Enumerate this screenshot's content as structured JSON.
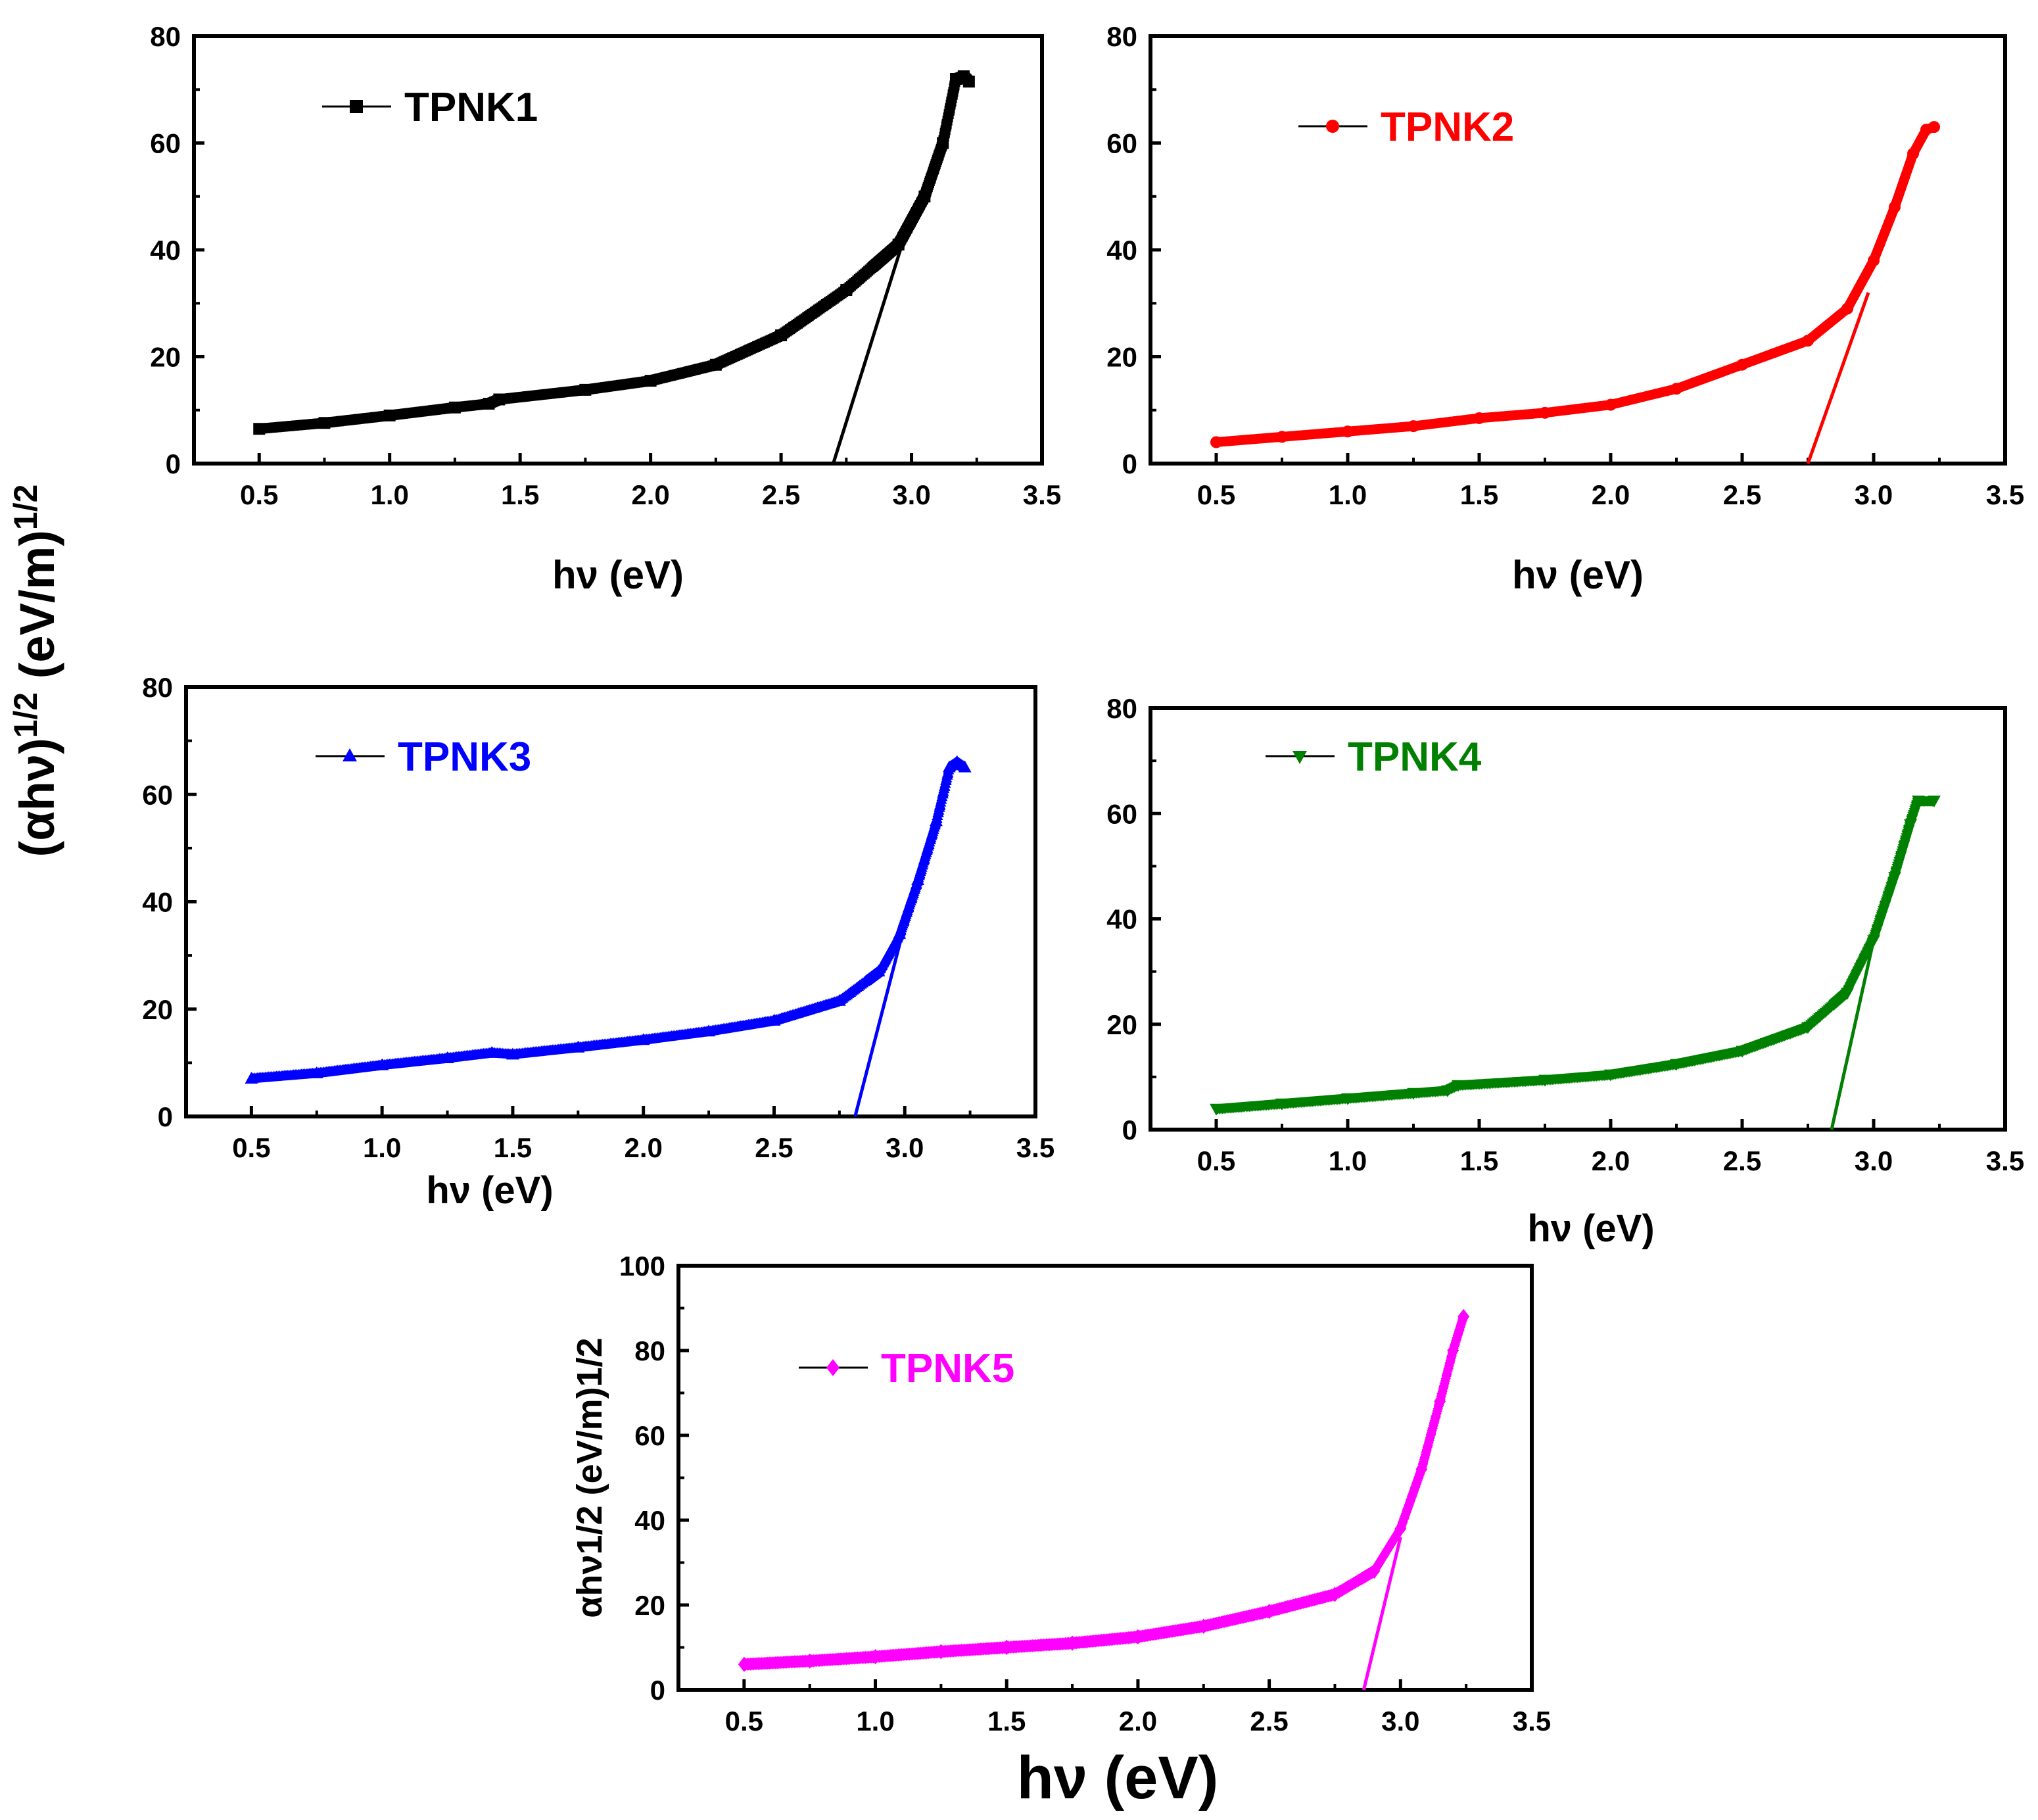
{
  "figure": {
    "shared_ylabel": "(αhν)1/2 (eV/m)1/2",
    "shared_ylabel_main": "(αhν)",
    "shared_ylabel_exp1": "1/2",
    "shared_ylabel_mid": " (eV/m)",
    "shared_ylabel_exp2": "1/2"
  },
  "chart_data": [
    {
      "type": "scatter",
      "name": "TPNK1",
      "color": "#000000",
      "marker": "square",
      "title": "",
      "xlabel": "hν (eV)",
      "ylabel": "",
      "xlim": [
        0.25,
        3.5
      ],
      "ylim": [
        0,
        80
      ],
      "xticks": [
        "0.5",
        "1.0",
        "1.5",
        "2.0",
        "2.5",
        "3.0",
        "3.5"
      ],
      "yticks": [
        "0",
        "20",
        "40",
        "60",
        "80"
      ],
      "legend": "TPNK1",
      "curve": [
        [
          0.5,
          6.5
        ],
        [
          0.75,
          7.6
        ],
        [
          1.0,
          9.0
        ],
        [
          1.25,
          10.5
        ],
        [
          1.38,
          11.2
        ],
        [
          1.42,
          12.0
        ],
        [
          1.75,
          13.8
        ],
        [
          2.0,
          15.5
        ],
        [
          2.25,
          18.5
        ],
        [
          2.5,
          24.0
        ],
        [
          2.75,
          32.5
        ],
        [
          2.95,
          41.0
        ],
        [
          3.05,
          50.0
        ],
        [
          3.12,
          60.0
        ],
        [
          3.17,
          72.0
        ],
        [
          3.2,
          72.5
        ],
        [
          3.22,
          71.5
        ]
      ],
      "fit_line": [
        [
          2.7,
          0
        ],
        [
          2.97,
          42
        ]
      ],
      "band_gap_eV": 2.7
    },
    {
      "type": "scatter",
      "name": "TPNK2",
      "color": "#ff0000",
      "marker": "circle",
      "title": "",
      "xlabel": "hν (eV)",
      "ylabel": "",
      "xlim": [
        0.25,
        3.5
      ],
      "ylim": [
        0,
        80
      ],
      "xticks": [
        "0.5",
        "1.0",
        "1.5",
        "2.0",
        "2.5",
        "3.0",
        "3.5"
      ],
      "yticks": [
        "0",
        "20",
        "40",
        "60",
        "80"
      ],
      "legend": "TPNK2",
      "curve": [
        [
          0.5,
          4.0
        ],
        [
          0.75,
          5.0
        ],
        [
          1.0,
          6.0
        ],
        [
          1.25,
          7.0
        ],
        [
          1.5,
          8.5
        ],
        [
          1.75,
          9.5
        ],
        [
          2.0,
          11.0
        ],
        [
          2.25,
          14.0
        ],
        [
          2.5,
          18.5
        ],
        [
          2.75,
          23.0
        ],
        [
          2.9,
          29.0
        ],
        [
          3.0,
          38.0
        ],
        [
          3.08,
          48.0
        ],
        [
          3.15,
          58.0
        ],
        [
          3.2,
          62.5
        ],
        [
          3.23,
          63.0
        ]
      ],
      "fit_line": [
        [
          2.75,
          0
        ],
        [
          2.98,
          32
        ]
      ],
      "band_gap_eV": 2.75
    },
    {
      "type": "scatter",
      "name": "TPNK3",
      "color": "#0000ff",
      "marker": "triangle-up",
      "title": "",
      "xlabel": "hν (eV)",
      "ylabel": "",
      "xlim": [
        0.25,
        3.5
      ],
      "ylim": [
        0,
        80
      ],
      "xticks": [
        "0.5",
        "1.0",
        "1.5",
        "2.0",
        "2.5",
        "3.0",
        "3.5"
      ],
      "yticks": [
        "0",
        "20",
        "40",
        "60",
        "80"
      ],
      "legend": "TPNK3",
      "curve": [
        [
          0.5,
          7.0
        ],
        [
          0.75,
          8.0
        ],
        [
          1.0,
          9.5
        ],
        [
          1.25,
          10.8
        ],
        [
          1.42,
          11.8
        ],
        [
          1.5,
          11.5
        ],
        [
          1.75,
          12.8
        ],
        [
          2.0,
          14.2
        ],
        [
          2.25,
          15.8
        ],
        [
          2.5,
          17.8
        ],
        [
          2.75,
          21.5
        ],
        [
          2.9,
          27.0
        ],
        [
          2.98,
          34.0
        ],
        [
          3.05,
          44.0
        ],
        [
          3.12,
          55.0
        ],
        [
          3.17,
          65.0
        ],
        [
          3.2,
          66.0
        ],
        [
          3.23,
          65.0
        ]
      ],
      "fit_line": [
        [
          2.81,
          0
        ],
        [
          2.98,
          32
        ]
      ],
      "band_gap_eV": 2.81
    },
    {
      "type": "scatter",
      "name": "TPNK4",
      "color": "#008000",
      "marker": "triangle-down",
      "title": "",
      "xlabel": "hν (eV)",
      "ylabel": "",
      "xlim": [
        0.25,
        3.5
      ],
      "ylim": [
        0,
        80
      ],
      "xticks": [
        "0.5",
        "1.0",
        "1.5",
        "2.0",
        "2.5",
        "3.0",
        "3.5"
      ],
      "yticks": [
        "0",
        "20",
        "40",
        "60",
        "80"
      ],
      "legend": "TPNK4",
      "curve": [
        [
          0.5,
          4.0
        ],
        [
          0.75,
          5.0
        ],
        [
          1.0,
          6.0
        ],
        [
          1.25,
          7.0
        ],
        [
          1.38,
          7.5
        ],
        [
          1.42,
          8.5
        ],
        [
          1.75,
          9.5
        ],
        [
          2.0,
          10.5
        ],
        [
          2.25,
          12.5
        ],
        [
          2.5,
          15.0
        ],
        [
          2.75,
          19.5
        ],
        [
          2.9,
          26.0
        ],
        [
          3.0,
          36.0
        ],
        [
          3.08,
          48.0
        ],
        [
          3.14,
          58.0
        ],
        [
          3.17,
          62.5
        ],
        [
          3.23,
          62.5
        ]
      ],
      "fit_line": [
        [
          2.84,
          0
        ],
        [
          3.0,
          36
        ]
      ],
      "band_gap_eV": 2.84
    },
    {
      "type": "scatter",
      "name": "TPNK5",
      "color": "#ff00ff",
      "marker": "diamond",
      "title": "",
      "xlabel": "hν (eV)",
      "ylabel": "αhν1/2 (eV/m)1/2",
      "xlim": [
        0.25,
        3.5
      ],
      "ylim": [
        0,
        100
      ],
      "xticks": [
        "0.5",
        "1.0",
        "1.5",
        "2.0",
        "2.5",
        "3.0",
        "3.5"
      ],
      "yticks": [
        "0",
        "20",
        "40",
        "60",
        "80",
        "100"
      ],
      "legend": "TPNK5",
      "curve": [
        [
          0.5,
          6.0
        ],
        [
          0.75,
          6.8
        ],
        [
          1.0,
          7.8
        ],
        [
          1.25,
          9.0
        ],
        [
          1.5,
          10.0
        ],
        [
          1.75,
          11.0
        ],
        [
          2.0,
          12.5
        ],
        [
          2.25,
          15.0
        ],
        [
          2.5,
          18.5
        ],
        [
          2.75,
          22.5
        ],
        [
          2.9,
          28.0
        ],
        [
          3.0,
          38.0
        ],
        [
          3.08,
          52.0
        ],
        [
          3.15,
          68.0
        ],
        [
          3.2,
          80.0
        ],
        [
          3.24,
          88.0
        ]
      ],
      "fit_line": [
        [
          2.86,
          0
        ],
        [
          3.0,
          36
        ]
      ],
      "band_gap_eV": 2.86
    }
  ]
}
